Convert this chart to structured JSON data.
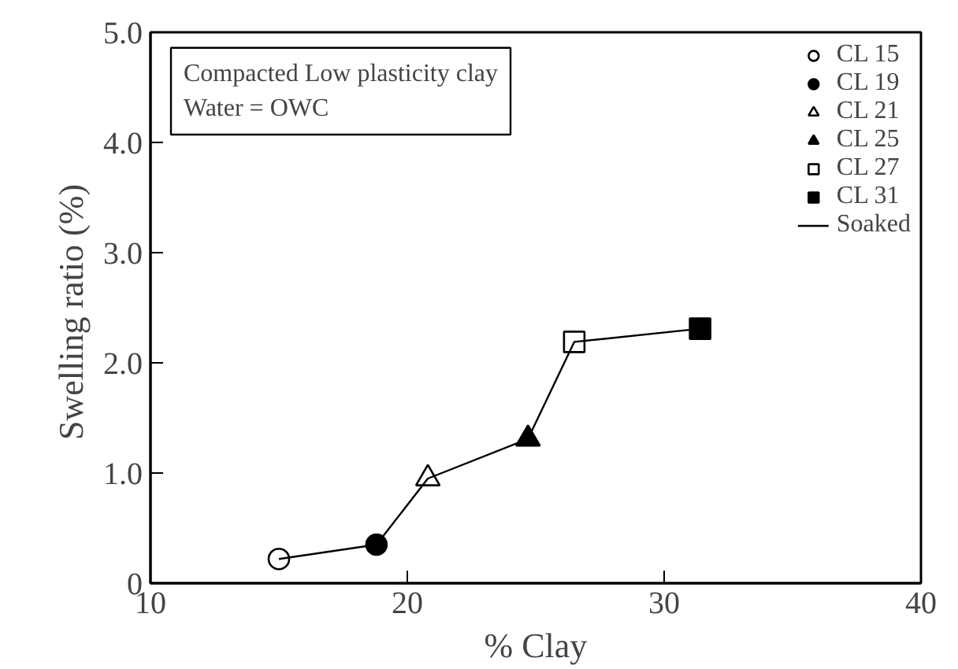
{
  "chart_data": {
    "type": "scatter",
    "xlabel": "% Clay",
    "ylabel": "Swelling ratio  (%)",
    "xlim": [
      10,
      40
    ],
    "xticks": [
      10,
      20,
      30,
      40
    ],
    "ylim": [
      0,
      5
    ],
    "yticks": [
      0,
      {
        "value": 1,
        "label": "1.0"
      },
      {
        "value": 2,
        "label": "2.0"
      },
      {
        "value": 3,
        "label": "3.0"
      },
      {
        "value": 4,
        "label": "4.0"
      },
      {
        "value": 5,
        "label": "5.0"
      }
    ],
    "annotations": [
      "Compacted Low plasticity clay\nWater = OWC"
    ],
    "grid": false,
    "legend": "top right",
    "series": [
      {
        "name": "CL 15",
        "marker": "circle",
        "color": "#ffffff",
        "x": [
          15.0
        ],
        "values": [
          0.22
        ]
      },
      {
        "name": "CL 19",
        "marker": "circle",
        "color": "#000000",
        "x": [
          18.8
        ],
        "values": [
          0.35
        ]
      },
      {
        "name": "CL 21",
        "marker": "triangle",
        "color": "#ffffff",
        "x": [
          20.8
        ],
        "values": [
          0.95
        ]
      },
      {
        "name": "CL 25",
        "marker": "triangle",
        "color": "#000000",
        "x": [
          24.7
        ],
        "values": [
          1.31
        ]
      },
      {
        "name": "CL 27",
        "marker": "square",
        "color": "#ffffff",
        "x": [
          26.5
        ],
        "values": [
          2.19
        ]
      },
      {
        "name": "CL 31",
        "marker": "square",
        "color": "#000000",
        "x": [
          31.4
        ],
        "values": [
          2.31
        ]
      },
      {
        "name": "Soaked",
        "type": "line",
        "marker": "none",
        "line_style": "solid",
        "color": "#000000",
        "x": [
          15.0,
          18.8,
          20.8,
          24.7,
          26.5,
          31.4
        ],
        "values": [
          0.22,
          0.35,
          0.95,
          1.31,
          2.19,
          2.31
        ]
      }
    ]
  }
}
